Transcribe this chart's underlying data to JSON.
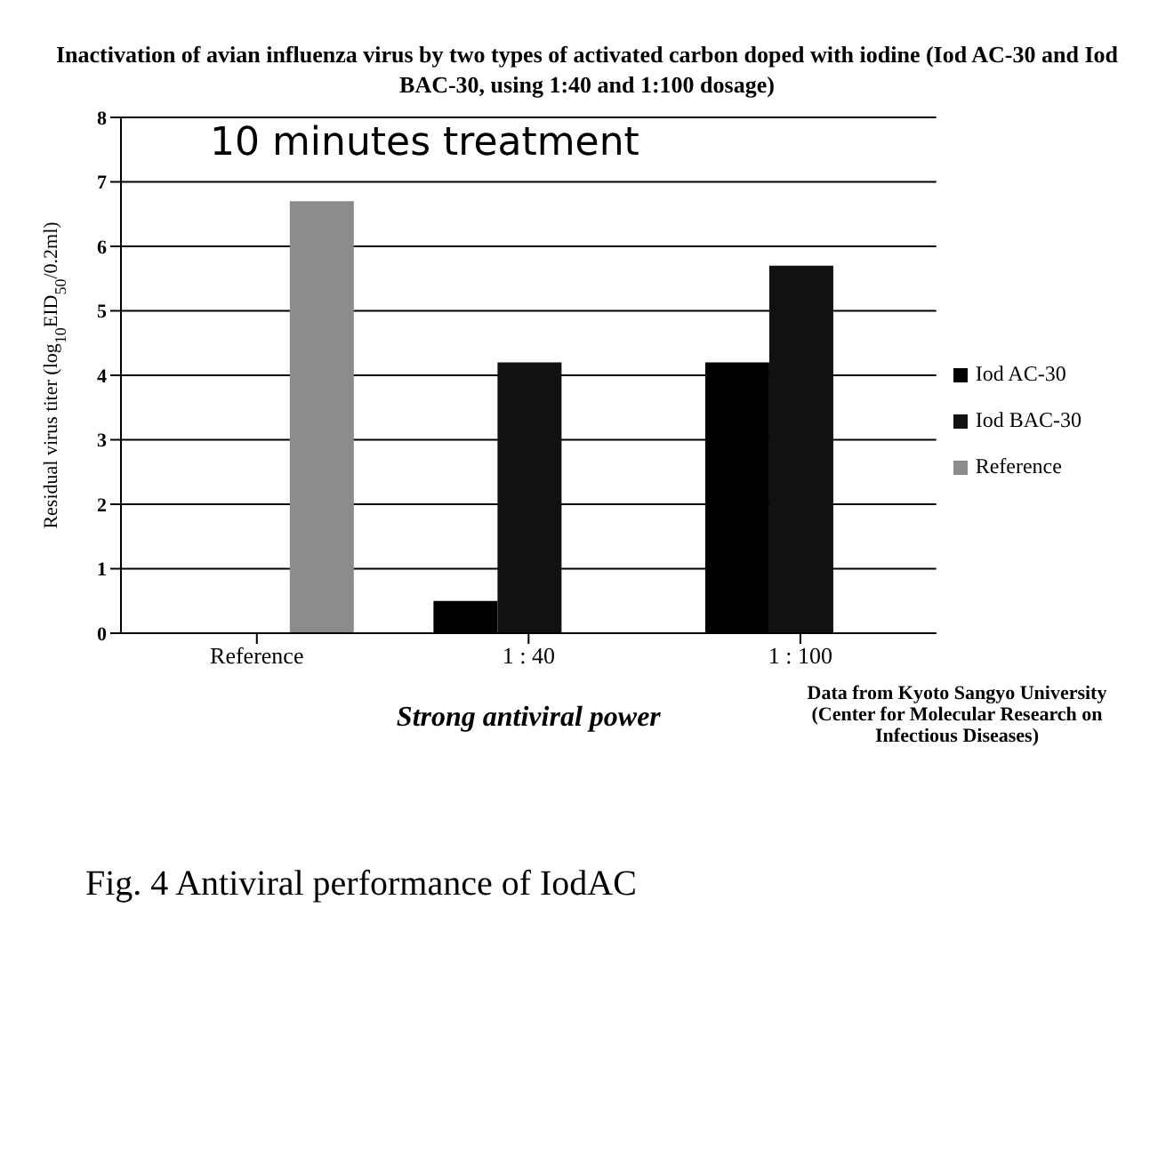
{
  "chart_data": {
    "type": "bar",
    "title": "Inactivation of avian influenza virus by two types of activated carbon doped with iodine (Iod AC-30 and Iod BAC-30, using 1:40 and 1:100 dosage)",
    "xlabel": "Strong antiviral power",
    "ylabel": "Residual virus titer (log$_{10}$EID$_{50}$/0.2ml)",
    "categories": [
      "Reference",
      "1 : 40",
      "1 : 100"
    ],
    "series": [
      {
        "name": "Iod AC-30",
        "color": "#000000",
        "values": [
          null,
          0.5,
          4.2
        ]
      },
      {
        "name": "Iod BAC-30",
        "color": "#111111",
        "values": [
          null,
          4.2,
          5.7
        ]
      },
      {
        "name": "Reference",
        "color": "#8c8c8c",
        "values": [
          6.7,
          null,
          null
        ]
      }
    ],
    "ylim": [
      0,
      8
    ],
    "yticks": [
      0,
      1,
      2,
      3,
      4,
      5,
      6,
      7,
      8
    ],
    "grid": "y",
    "legend": "right",
    "annotations": [
      "10 minutes treatment",
      "Data from Kyoto Sangyo University (Center for Molecular Research on Infectious Diseases)",
      "Fig. 4 Antiviral performance of IodAC"
    ]
  }
}
